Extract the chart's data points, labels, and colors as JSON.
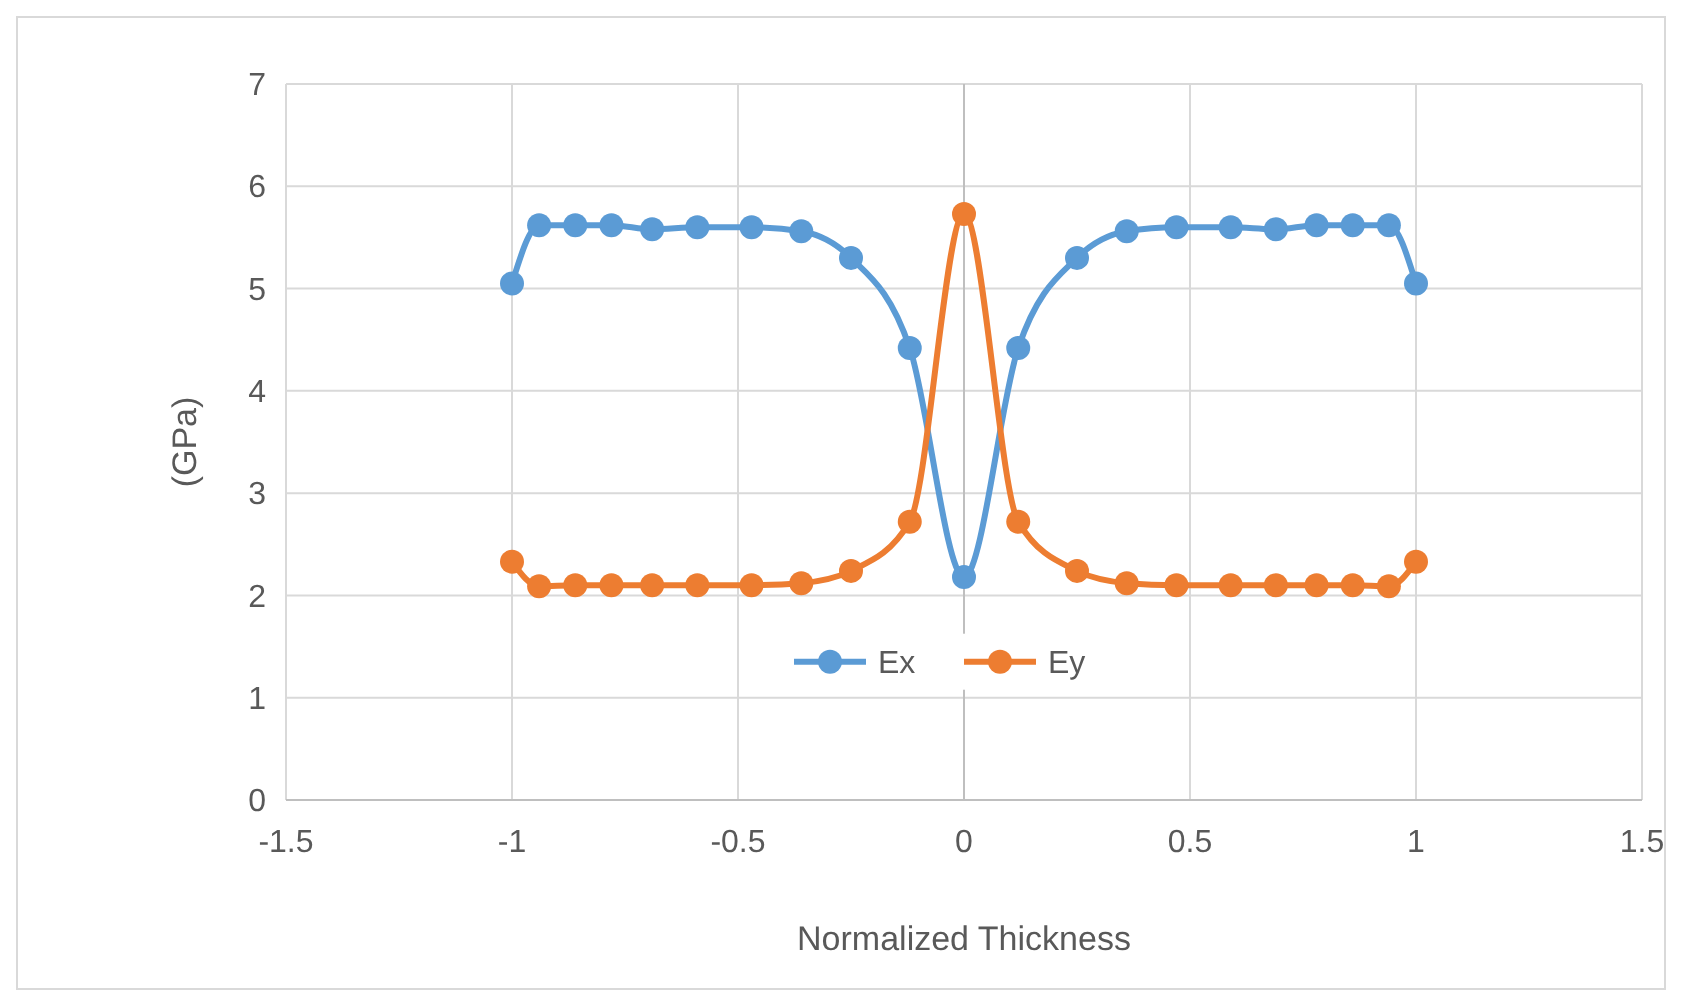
{
  "chart_data": {
    "type": "line",
    "xlabel": "Normalized Thickness",
    "ylabel": "(GPa)",
    "xlim": [
      -1.5,
      1.5
    ],
    "xticks": [
      -1.5,
      -1,
      -0.5,
      0,
      0.5,
      1,
      1.5
    ],
    "ylim": [
      0,
      7
    ],
    "yticks": [
      0,
      1,
      2,
      3,
      4,
      5,
      6,
      7
    ],
    "x": [
      -1,
      -0.94,
      -0.86,
      -0.78,
      -0.69,
      -0.59,
      -0.47,
      -0.36,
      -0.25,
      -0.12,
      0,
      0.12,
      0.25,
      0.36,
      0.47,
      0.59,
      0.69,
      0.78,
      0.86,
      0.94,
      1
    ],
    "series": [
      {
        "name": "Ex",
        "color": "#5b9bd5",
        "values": [
          5.05,
          5.62,
          5.62,
          5.62,
          5.58,
          5.6,
          5.6,
          5.56,
          5.3,
          4.42,
          2.18,
          4.42,
          5.3,
          5.56,
          5.6,
          5.6,
          5.58,
          5.62,
          5.62,
          5.62,
          5.05
        ]
      },
      {
        "name": "Ey",
        "color": "#ed7d31",
        "values": [
          2.33,
          2.09,
          2.1,
          2.1,
          2.1,
          2.1,
          2.1,
          2.12,
          2.24,
          2.72,
          5.73,
          2.72,
          2.24,
          2.12,
          2.1,
          2.1,
          2.1,
          2.1,
          2.1,
          2.09,
          2.33
        ]
      }
    ],
    "grid": true,
    "legend": "bottom",
    "marker": "circle",
    "line_style": "solid"
  }
}
